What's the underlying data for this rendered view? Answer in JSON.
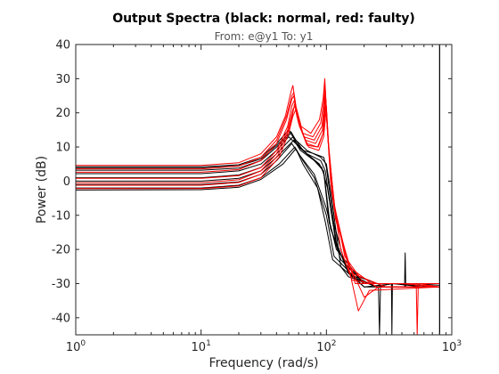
{
  "chart_data": {
    "type": "line",
    "title": "Output Spectra (black: normal, red: faulty)",
    "subtitle": "From: e@y1  To: y1",
    "xlabel": "Frequency  (rad/s)",
    "ylabel": "Power (dB)",
    "xscale": "log",
    "xlim": [
      1,
      1000
    ],
    "ylim": [
      -45,
      40
    ],
    "xticks": [
      {
        "value": 1,
        "base": "10",
        "exp": "0"
      },
      {
        "value": 10,
        "base": "10",
        "exp": "1"
      },
      {
        "value": 100,
        "base": "10",
        "exp": "2"
      },
      {
        "value": 1000,
        "base": "10",
        "exp": "3"
      }
    ],
    "yticks": [
      {
        "value": 40,
        "label": "40"
      },
      {
        "value": 30,
        "label": "30"
      },
      {
        "value": 20,
        "label": "20"
      },
      {
        "value": 10,
        "label": "10"
      },
      {
        "value": 0,
        "label": "0"
      },
      {
        "value": -10,
        "label": "-10"
      },
      {
        "value": -20,
        "label": "-20"
      },
      {
        "value": -30,
        "label": "-30"
      },
      {
        "value": -40,
        "label": "-40"
      }
    ],
    "grid": false,
    "vertical_marker": 800,
    "colors": {
      "normal": "#000000",
      "faulty": "#ff0000"
    },
    "series": [
      {
        "group": "normal",
        "color": "#000000",
        "points": [
          [
            1,
            4.2
          ],
          [
            10,
            4.2
          ],
          [
            20,
            4.8
          ],
          [
            30,
            7
          ],
          [
            40,
            11
          ],
          [
            50,
            15
          ],
          [
            56,
            12.5
          ],
          [
            65,
            9
          ],
          [
            80,
            8
          ],
          [
            95,
            7
          ],
          [
            100,
            4
          ],
          [
            120,
            -18
          ],
          [
            150,
            -27
          ],
          [
            200,
            -30
          ],
          [
            300,
            -30
          ],
          [
            500,
            -30
          ],
          [
            800,
            -30.5
          ]
        ]
      },
      {
        "group": "normal",
        "color": "#000000",
        "points": [
          [
            1,
            3.2
          ],
          [
            10,
            3.2
          ],
          [
            20,
            3.8
          ],
          [
            30,
            6
          ],
          [
            40,
            10
          ],
          [
            52,
            14
          ],
          [
            58,
            11
          ],
          [
            70,
            8
          ],
          [
            90,
            6
          ],
          [
            98,
            3
          ],
          [
            110,
            -10
          ],
          [
            140,
            -24
          ],
          [
            200,
            -30
          ],
          [
            400,
            -30
          ],
          [
            800,
            -31
          ]
        ]
      },
      {
        "group": "normal",
        "color": "#000000",
        "points": [
          [
            1,
            1
          ],
          [
            10,
            1
          ],
          [
            20,
            1.8
          ],
          [
            30,
            4
          ],
          [
            40,
            8
          ],
          [
            54,
            13
          ],
          [
            60,
            10
          ],
          [
            75,
            7
          ],
          [
            92,
            4
          ],
          [
            102,
            -2
          ],
          [
            120,
            -19
          ],
          [
            160,
            -28
          ],
          [
            250,
            -31
          ],
          [
            500,
            -31
          ],
          [
            800,
            -31
          ]
        ]
      },
      {
        "group": "normal",
        "color": "#000000",
        "points": [
          [
            1,
            0
          ],
          [
            10,
            0
          ],
          [
            20,
            0.8
          ],
          [
            30,
            3
          ],
          [
            40,
            7
          ],
          [
            55,
            12
          ],
          [
            62,
            9
          ],
          [
            80,
            6
          ],
          [
            95,
            3
          ],
          [
            105,
            -12
          ],
          [
            130,
            -23
          ],
          [
            200,
            -30
          ],
          [
            300,
            -30
          ],
          [
            800,
            -30
          ]
        ]
      },
      {
        "group": "normal",
        "color": "#000000",
        "points": [
          [
            1,
            -1
          ],
          [
            10,
            -1
          ],
          [
            20,
            -0.2
          ],
          [
            30,
            2
          ],
          [
            40,
            6
          ],
          [
            53,
            11
          ],
          [
            60,
            8
          ],
          [
            80,
            2
          ],
          [
            100,
            -8
          ],
          [
            120,
            -20
          ],
          [
            180,
            -28
          ],
          [
            300,
            -31
          ],
          [
            800,
            -31
          ]
        ]
      },
      {
        "group": "normal",
        "color": "#000000",
        "points": [
          [
            1,
            -2
          ],
          [
            10,
            -2
          ],
          [
            20,
            -1.2
          ],
          [
            30,
            1
          ],
          [
            42,
            5
          ],
          [
            56,
            10
          ],
          [
            65,
            6
          ],
          [
            80,
            1
          ],
          [
            100,
            -10
          ],
          [
            115,
            -22
          ],
          [
            200,
            -31
          ],
          [
            350,
            -30
          ],
          [
            800,
            -31
          ]
        ]
      },
      {
        "group": "normal",
        "color": "#000000",
        "points": [
          [
            1,
            -2.6
          ],
          [
            10,
            -2.5
          ],
          [
            20,
            -1.8
          ],
          [
            30,
            0.5
          ],
          [
            45,
            5
          ],
          [
            57,
            9.5
          ],
          [
            65,
            5
          ],
          [
            85,
            -2
          ],
          [
            98,
            -12
          ],
          [
            112,
            -23
          ],
          [
            200,
            -31
          ],
          [
            300,
            -31
          ],
          [
            800,
            -31
          ]
        ]
      },
      {
        "group": "normal",
        "color": "#000000",
        "points": [
          [
            1,
            2.2
          ],
          [
            10,
            2.2
          ],
          [
            20,
            3
          ],
          [
            30,
            5
          ],
          [
            40,
            9
          ],
          [
            50,
            13
          ],
          [
            57,
            11
          ],
          [
            70,
            8
          ],
          [
            88,
            5
          ],
          [
            96,
            2
          ],
          [
            108,
            -14
          ],
          [
            150,
            -27
          ],
          [
            250,
            -31
          ],
          [
            330,
            -30
          ],
          [
            333,
            -45
          ],
          [
            336,
            -30
          ],
          [
            600,
            -31
          ],
          [
            800,
            -31
          ]
        ]
      },
      {
        "group": "normal",
        "color": "#000000",
        "points": [
          [
            1,
            3.8
          ],
          [
            10,
            3.8
          ],
          [
            20,
            4.5
          ],
          [
            30,
            6.5
          ],
          [
            40,
            10.5
          ],
          [
            52,
            14.5
          ],
          [
            57,
            12
          ],
          [
            70,
            9
          ],
          [
            90,
            7
          ],
          [
            100,
            5
          ],
          [
            110,
            -5
          ],
          [
            130,
            -25
          ],
          [
            150,
            -28
          ],
          [
            260,
            -31
          ],
          [
            265,
            -45
          ],
          [
            270,
            -31
          ],
          [
            420,
            -31
          ],
          [
            425,
            -21
          ],
          [
            430,
            -31
          ],
          [
            800,
            -31
          ]
        ]
      },
      {
        "group": "faulty",
        "color": "#ff0000",
        "points": [
          [
            1,
            4.6
          ],
          [
            10,
            4.6
          ],
          [
            20,
            5.4
          ],
          [
            30,
            8
          ],
          [
            40,
            13
          ],
          [
            47,
            19
          ],
          [
            52,
            26
          ],
          [
            54,
            28
          ],
          [
            57,
            22
          ],
          [
            63,
            16
          ],
          [
            75,
            14
          ],
          [
            88,
            18
          ],
          [
            94,
            24
          ],
          [
            97,
            30
          ],
          [
            100,
            20
          ],
          [
            108,
            0
          ],
          [
            130,
            -20
          ],
          [
            160,
            -29
          ],
          [
            250,
            -30
          ],
          [
            500,
            -30
          ],
          [
            800,
            -30
          ]
        ]
      },
      {
        "group": "faulty",
        "color": "#ff0000",
        "points": [
          [
            1,
            3.6
          ],
          [
            10,
            3.6
          ],
          [
            20,
            4.4
          ],
          [
            30,
            7
          ],
          [
            40,
            12
          ],
          [
            48,
            19
          ],
          [
            53,
            25
          ],
          [
            55,
            26
          ],
          [
            58,
            20
          ],
          [
            65,
            14
          ],
          [
            78,
            13
          ],
          [
            90,
            17
          ],
          [
            95,
            23
          ],
          [
            97,
            29
          ],
          [
            101,
            17
          ],
          [
            110,
            -3
          ],
          [
            140,
            -22
          ],
          [
            200,
            -30
          ],
          [
            400,
            -30
          ],
          [
            800,
            -31
          ]
        ]
      },
      {
        "group": "faulty",
        "color": "#ff0000",
        "points": [
          [
            1,
            2.6
          ],
          [
            10,
            2.6
          ],
          [
            20,
            3.4
          ],
          [
            30,
            6
          ],
          [
            40,
            11
          ],
          [
            48,
            18
          ],
          [
            53,
            24
          ],
          [
            55,
            25
          ],
          [
            58,
            19
          ],
          [
            66,
            13
          ],
          [
            80,
            12
          ],
          [
            92,
            16
          ],
          [
            96,
            22
          ],
          [
            98,
            27
          ],
          [
            102,
            15
          ],
          [
            112,
            -5
          ],
          [
            150,
            -25
          ],
          [
            250,
            -31
          ],
          [
            550,
            -31
          ],
          [
            800,
            -31
          ]
        ]
      },
      {
        "group": "faulty",
        "color": "#ff0000",
        "points": [
          [
            1,
            0.8
          ],
          [
            10,
            0.8
          ],
          [
            20,
            1.6
          ],
          [
            30,
            4
          ],
          [
            40,
            9
          ],
          [
            49,
            16
          ],
          [
            53,
            22
          ],
          [
            56,
            24
          ],
          [
            59,
            18
          ],
          [
            68,
            12
          ],
          [
            82,
            11
          ],
          [
            93,
            15
          ],
          [
            96,
            20
          ],
          [
            98,
            25
          ],
          [
            103,
            12
          ],
          [
            115,
            -8
          ],
          [
            150,
            -24
          ],
          [
            200,
            -34
          ],
          [
            260,
            -31
          ],
          [
            800,
            -31
          ]
        ]
      },
      {
        "group": "faulty",
        "color": "#ff0000",
        "points": [
          [
            1,
            -0.5
          ],
          [
            10,
            -0.5
          ],
          [
            20,
            0.4
          ],
          [
            30,
            3
          ],
          [
            40,
            8
          ],
          [
            49,
            15
          ],
          [
            54,
            21
          ],
          [
            56,
            22
          ],
          [
            60,
            17
          ],
          [
            70,
            11
          ],
          [
            85,
            10
          ],
          [
            94,
            14
          ],
          [
            97,
            19
          ],
          [
            99,
            23
          ],
          [
            104,
            10
          ],
          [
            118,
            -10
          ],
          [
            150,
            -25
          ],
          [
            180,
            -38
          ],
          [
            220,
            -32
          ],
          [
            800,
            -31
          ]
        ]
      },
      {
        "group": "faulty",
        "color": "#ff0000",
        "points": [
          [
            1,
            -2.2
          ],
          [
            10,
            -2.2
          ],
          [
            20,
            -1.4
          ],
          [
            30,
            1
          ],
          [
            42,
            7
          ],
          [
            50,
            14
          ],
          [
            54,
            19
          ],
          [
            57,
            21
          ],
          [
            61,
            16
          ],
          [
            72,
            10
          ],
          [
            87,
            9
          ],
          [
            95,
            13
          ],
          [
            98,
            18
          ],
          [
            100,
            22
          ],
          [
            105,
            8
          ],
          [
            120,
            -12
          ],
          [
            160,
            -27
          ],
          [
            300,
            -31
          ],
          [
            800,
            -31
          ]
        ]
      },
      {
        "group": "faulty",
        "color": "#ff0000",
        "points": [
          [
            1,
            -1.2
          ],
          [
            10,
            -1.2
          ],
          [
            20,
            -0.4
          ],
          [
            30,
            2
          ],
          [
            41,
            7.5
          ],
          [
            50,
            15
          ],
          [
            54,
            20
          ],
          [
            56,
            23
          ],
          [
            60,
            17
          ],
          [
            70,
            10.5
          ],
          [
            86,
            10
          ],
          [
            94,
            14
          ],
          [
            97,
            20
          ],
          [
            99,
            24
          ],
          [
            104,
            11
          ],
          [
            118,
            -11
          ],
          [
            170,
            -30
          ],
          [
            400,
            -30
          ],
          [
            520,
            -30
          ],
          [
            530,
            -45
          ],
          [
            540,
            -30
          ],
          [
            800,
            -31
          ]
        ]
      }
    ]
  }
}
